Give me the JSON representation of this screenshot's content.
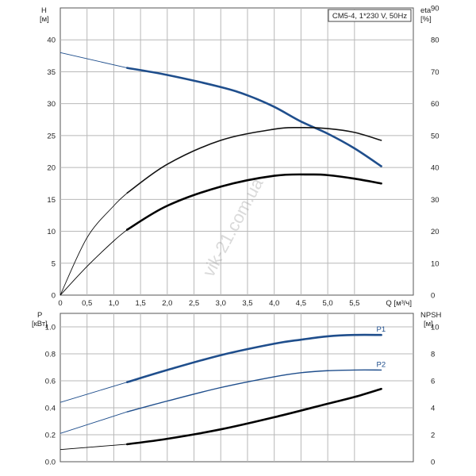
{
  "chart_data": [
    {
      "type": "line",
      "title": "CM5-4, 1*230 V, 50Hz",
      "xlabel": "Q [м³/ч]",
      "x_unit_label": "Q [м³/ч]",
      "xlim": [
        0,
        6.6
      ],
      "x_ticks": [
        0,
        0.5,
        1.0,
        1.5,
        2.0,
        2.5,
        3.0,
        3.5,
        4.0,
        4.5,
        5.0,
        5.5
      ],
      "x_tick_labels": [
        "0",
        "0,5",
        "1,0",
        "1,5",
        "2,0",
        "2,5",
        "3,0",
        "3,5",
        "4,0",
        "4,5",
        "5,0",
        "5,5"
      ],
      "ylabel": "H",
      "ylabel_unit": "[м]",
      "ylim": [
        0,
        45
      ],
      "y_ticks": [
        0,
        5,
        10,
        15,
        20,
        25,
        30,
        35,
        40
      ],
      "y2label": "eta",
      "y2label_unit": "[%]",
      "y2lim": [
        0,
        90
      ],
      "y2_ticks": [
        0,
        10,
        20,
        30,
        40,
        50,
        60,
        70,
        80,
        90
      ],
      "grid": true,
      "series": [
        {
          "axis": "left",
          "color": "#1f4e8c",
          "x": [
            0,
            1.25,
            2,
            3,
            3.5,
            4,
            4.5,
            5,
            5.5,
            6.0
          ],
          "values": [
            38.0,
            35.6,
            34.5,
            32.6,
            31.3,
            29.5,
            27.2,
            25.3,
            23.0,
            20.2
          ]
        },
        {
          "axis": "right",
          "color": "#111111",
          "x": [
            0,
            0.5,
            1.0,
            1.25,
            2,
            3,
            4,
            4.5,
            5.0,
            5.5,
            6.0
          ],
          "values": [
            0,
            18,
            28,
            32,
            41,
            48.5,
            52,
            52.5,
            52.2,
            51,
            48.5
          ]
        },
        {
          "axis": "right",
          "color": "#000000",
          "x": [
            0,
            0.5,
            1.0,
            1.25,
            2,
            3,
            4,
            4.7,
            5.0,
            5.5,
            6.0
          ],
          "values": [
            0,
            9,
            17,
            20.5,
            28,
            34,
            37.4,
            37.8,
            37.6,
            36.5,
            35
          ]
        }
      ]
    },
    {
      "type": "line",
      "title": "",
      "xlim": [
        0,
        6.6
      ],
      "ylabel": "P",
      "ylabel_unit": "[кВт]",
      "ylim": [
        0,
        1.1
      ],
      "y_ticks": [
        0,
        0.2,
        0.4,
        0.6,
        0.8,
        1.0
      ],
      "y_tick_labels": [
        "0.0",
        "0.2",
        "0.4",
        "0.6",
        "0.8",
        "1.0"
      ],
      "y2label": "NPSH",
      "y2label_unit": "[м]",
      "y2lim": [
        0,
        11
      ],
      "y2_ticks": [
        0,
        2,
        4,
        6,
        8,
        10
      ],
      "grid": true,
      "series": [
        {
          "name": "P1",
          "axis": "left",
          "color": "#1f4e8c",
          "x": [
            0,
            1.25,
            2,
            3,
            4,
            4.5,
            5,
            5.5,
            6.0
          ],
          "values": [
            0.44,
            0.59,
            0.68,
            0.79,
            0.875,
            0.905,
            0.93,
            0.94,
            0.94
          ]
        },
        {
          "name": "P2",
          "axis": "left",
          "color": "#1f4e8c",
          "x": [
            0,
            1.25,
            2,
            3,
            4,
            4.5,
            5,
            5.5,
            6.0
          ],
          "values": [
            0.21,
            0.37,
            0.45,
            0.55,
            0.63,
            0.66,
            0.675,
            0.68,
            0.68
          ]
        },
        {
          "name": "NPSH",
          "axis": "right",
          "color": "#000000",
          "x": [
            0,
            1.25,
            2,
            3,
            4,
            5,
            5.5,
            6.0
          ],
          "values": [
            0.9,
            1.3,
            1.7,
            2.4,
            3.3,
            4.3,
            4.8,
            5.4
          ]
        }
      ]
    }
  ],
  "watermark": "vik-21.com.ua"
}
